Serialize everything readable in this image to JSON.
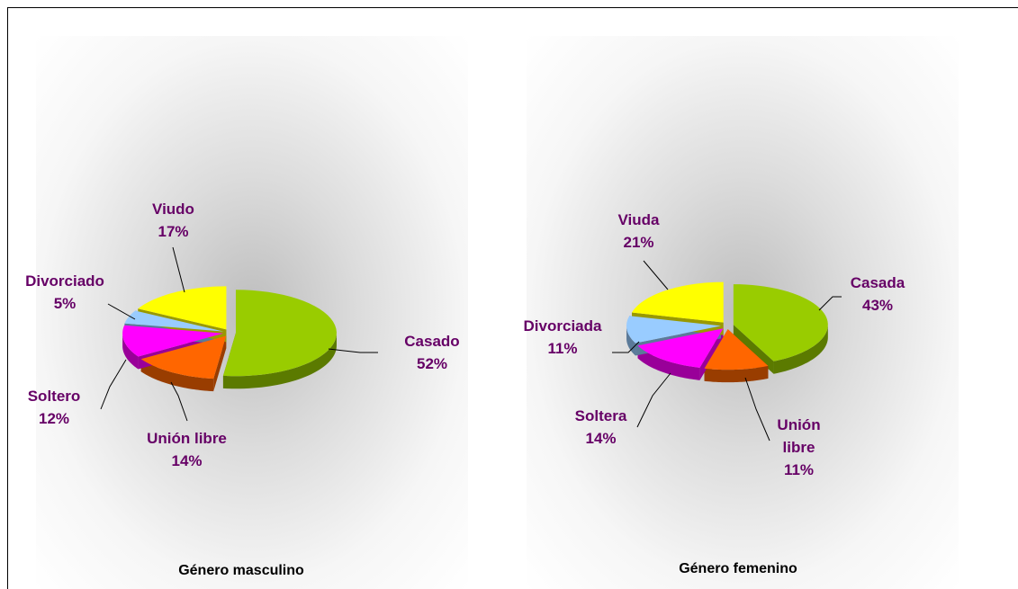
{
  "chart_data": [
    {
      "type": "pie",
      "title": "Género masculino",
      "categories": [
        "Casado",
        "Unión libre",
        "Soltero",
        "Divorciado",
        "Viudo"
      ],
      "values": [
        52,
        14,
        12,
        5,
        17
      ],
      "value_labels": [
        "52%",
        "14%",
        "12%",
        "5%",
        "17%"
      ],
      "colors": [
        "#99cc00",
        "#ff6600",
        "#ff00ff",
        "#99ccff",
        "#ffff00"
      ]
    },
    {
      "type": "pie",
      "title": "Género femenino",
      "categories": [
        "Casada",
        "Unión libre",
        "Soltera",
        "Divorciada",
        "Viuda"
      ],
      "values": [
        43,
        11,
        14,
        11,
        21
      ],
      "value_labels": [
        "43%",
        "11%",
        "14%",
        "11%",
        "21%"
      ],
      "colors": [
        "#99cc00",
        "#ff6600",
        "#ff00ff",
        "#99ccff",
        "#ffff00"
      ]
    }
  ]
}
